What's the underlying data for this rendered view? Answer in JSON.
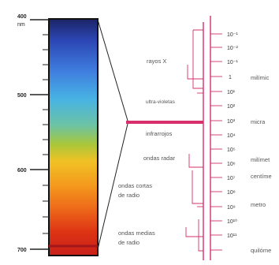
{
  "scale": {
    "ticks": [
      {
        "label": "400",
        "unit": "nm"
      },
      {
        "label": "500"
      },
      {
        "label": "600"
      },
      {
        "label": "700"
      }
    ]
  },
  "regions": [
    {
      "label": "rayos X"
    },
    {
      "label": "ultra-violetas"
    },
    {
      "label": "infrarrojos"
    },
    {
      "label": "ondas radar"
    },
    {
      "label": "ondas cortas de radio"
    },
    {
      "label": "ondas medias de radio"
    }
  ],
  "exponents": [
    "10⁻¹",
    "10⁻²",
    "10⁻¹",
    "1",
    "10¹",
    "10²",
    "10³",
    "10⁴",
    "10⁵",
    "10⁶",
    "10⁷",
    "10⁸",
    "10⁹",
    "10¹⁰",
    "10¹¹"
  ],
  "units": [
    {
      "label": "milímic"
    },
    {
      "label": "micra"
    },
    {
      "label": "milímet"
    },
    {
      "label": "centíme"
    },
    {
      "label": "metro"
    },
    {
      "label": "quilóme"
    }
  ],
  "colors": {
    "spectrum": [
      "#1b2466",
      "#2c46b4",
      "#3f7ddf",
      "#48b3e3",
      "#6cc3a4",
      "#a9c73a",
      "#f0c226",
      "#f49b1d",
      "#ee6a1a",
      "#dd3414",
      "#c81f1a"
    ],
    "accent": "#d62f6c",
    "ink": "#333333",
    "light_ink": "#555555"
  }
}
